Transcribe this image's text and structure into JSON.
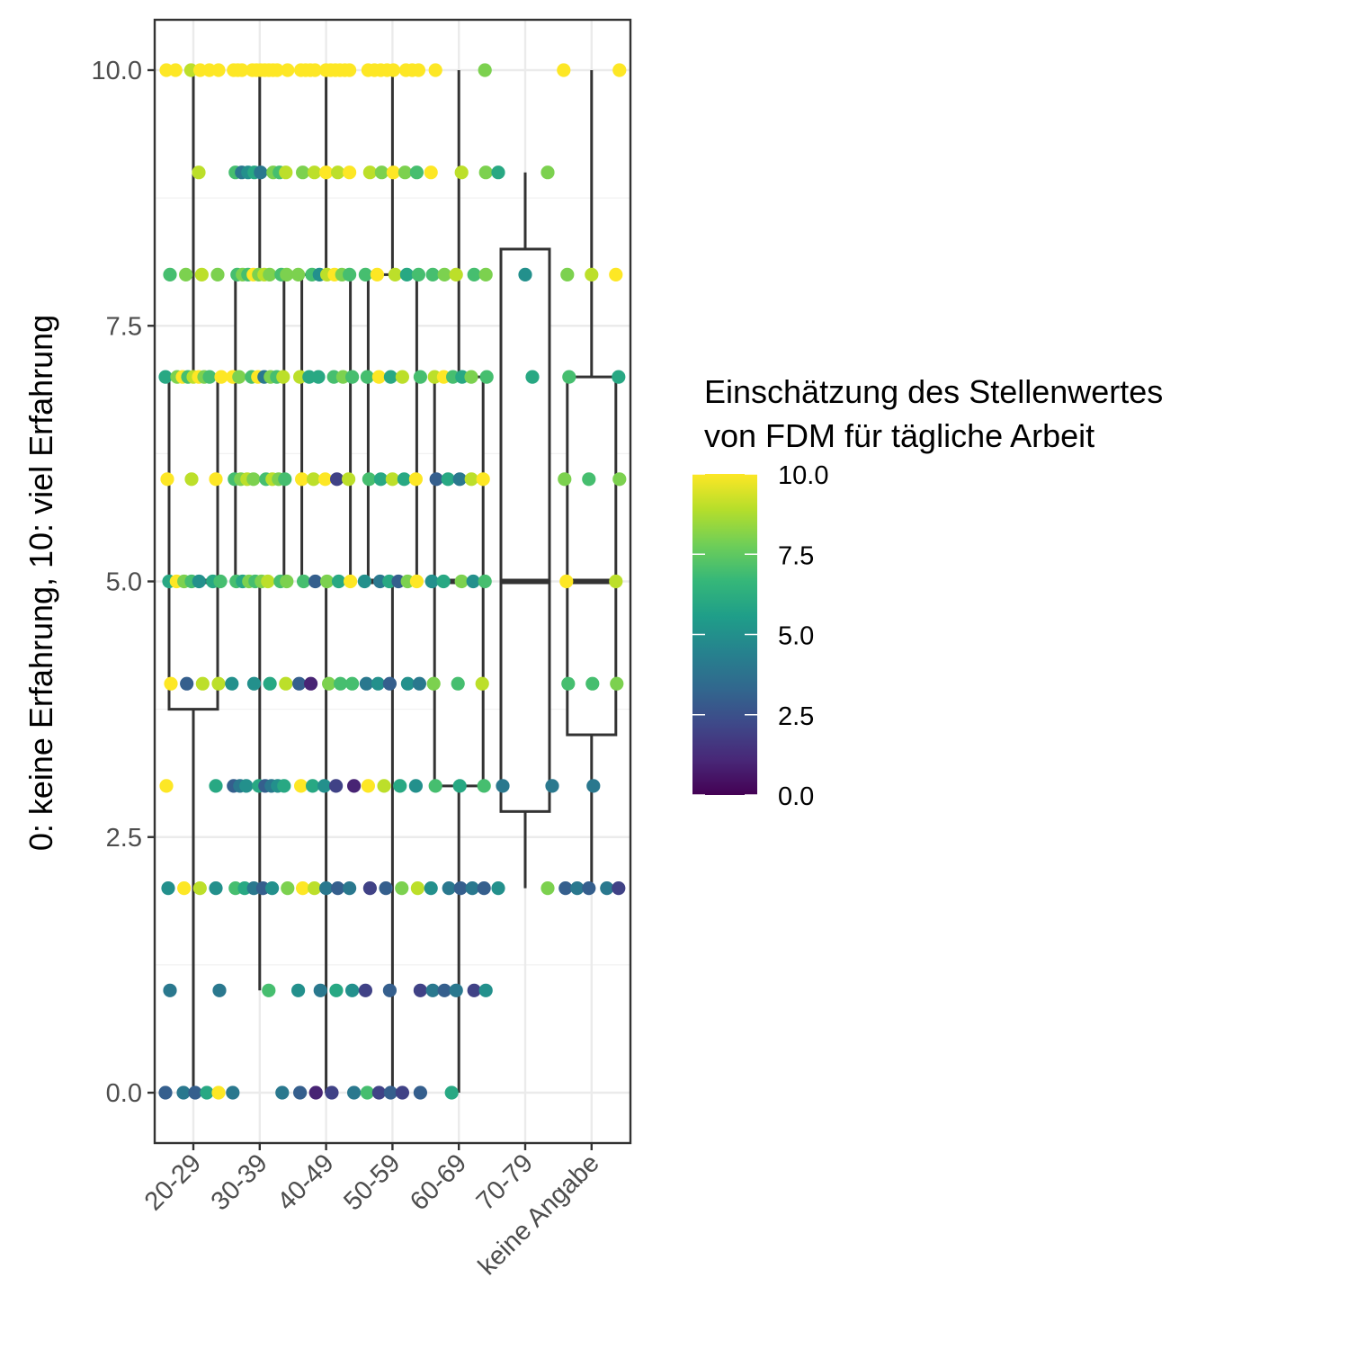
{
  "chart_data": {
    "type": "box",
    "ylabel": "0: keine Erfahrung, 10: viel Erfahrung",
    "xlabel": "",
    "categories": [
      "20-29",
      "30-39",
      "40-49",
      "50-59",
      "60-69",
      "70-79",
      "keine Angabe"
    ],
    "ylim": [
      -0.5,
      10.5
    ],
    "y_ticks": [
      "0.0",
      "2.5",
      "5.0",
      "7.5",
      "10.0"
    ],
    "y_tick_values": [
      0,
      2.5,
      5,
      7.5,
      10
    ],
    "grid": true,
    "boxes": [
      {
        "category": "20-29",
        "whisker_low": 0,
        "q1": 3.75,
        "median": 5,
        "q3": 7,
        "whisker_high": 10
      },
      {
        "category": "30-39",
        "whisker_low": 1,
        "q1": 5,
        "median": 5,
        "q3": 8,
        "whisker_high": 10
      },
      {
        "category": "40-49",
        "whisker_low": 0,
        "q1": 5,
        "median": 5,
        "q3": 8,
        "whisker_high": 10
      },
      {
        "category": "50-59",
        "whisker_low": 0,
        "q1": 5,
        "median": 5,
        "q3": 8,
        "whisker_high": 10
      },
      {
        "category": "60-69",
        "whisker_low": 0,
        "q1": 3,
        "median": 5,
        "q3": 7,
        "whisker_high": 10
      },
      {
        "category": "70-79",
        "whisker_low": 2,
        "q1": 2.75,
        "median": 5,
        "q3": 8.25,
        "whisker_high": 9
      },
      {
        "category": "keine Angabe",
        "whisker_low": 2,
        "q1": 3.5,
        "median": 5,
        "q3": 7,
        "whisker_high": 10
      }
    ],
    "points": [
      {
        "c": 0,
        "y": 10,
        "v": [
          10,
          10,
          9,
          10,
          10,
          10
        ]
      },
      {
        "c": 0,
        "y": 9,
        "v": [
          9
        ]
      },
      {
        "c": 0,
        "y": 8,
        "v": [
          7,
          8,
          9,
          8
        ]
      },
      {
        "c": 0,
        "y": 7,
        "v": [
          6,
          8,
          10,
          7,
          9,
          10,
          8,
          7,
          10
        ]
      },
      {
        "c": 0,
        "y": 6,
        "v": [
          10,
          9,
          10
        ]
      },
      {
        "c": 0,
        "y": 5,
        "v": [
          6,
          10,
          8,
          7,
          5,
          6,
          7
        ]
      },
      {
        "c": 0,
        "y": 4,
        "v": [
          10,
          3,
          9,
          9
        ]
      },
      {
        "c": 0,
        "y": 3,
        "v": [
          10,
          6
        ]
      },
      {
        "c": 0,
        "y": 2,
        "v": [
          5,
          10,
          9,
          5
        ]
      },
      {
        "c": 0,
        "y": 1,
        "v": [
          4,
          4
        ]
      },
      {
        "c": 0,
        "y": 0,
        "v": [
          3,
          4,
          3,
          6,
          10
        ]
      },
      {
        "c": 1,
        "y": 10,
        "v": [
          10,
          10,
          10,
          10,
          10,
          10,
          10,
          10,
          10,
          10,
          10
        ]
      },
      {
        "c": 1,
        "y": 9,
        "v": [
          7,
          4,
          5,
          6,
          4,
          8,
          7,
          9
        ]
      },
      {
        "c": 1,
        "y": 8,
        "v": [
          7,
          8,
          7,
          10,
          8,
          9,
          8,
          7,
          8
        ]
      },
      {
        "c": 1,
        "y": 7,
        "v": [
          10,
          8,
          7,
          10,
          4,
          8,
          7,
          9
        ]
      },
      {
        "c": 1,
        "y": 6,
        "v": [
          7,
          8,
          9,
          8,
          7,
          9,
          8,
          7
        ]
      },
      {
        "c": 1,
        "y": 5,
        "v": [
          7,
          6,
          8,
          7,
          8,
          9,
          7,
          8
        ]
      },
      {
        "c": 1,
        "y": 4,
        "v": [
          5,
          5,
          6,
          9
        ]
      },
      {
        "c": 1,
        "y": 3,
        "v": [
          3,
          4,
          5,
          6,
          3,
          4,
          5,
          6
        ]
      },
      {
        "c": 1,
        "y": 2,
        "v": [
          7,
          6,
          4,
          3,
          5,
          8
        ]
      },
      {
        "c": 1,
        "y": 1,
        "v": [
          7
        ]
      },
      {
        "c": 1,
        "y": 0,
        "v": [
          4,
          4
        ]
      },
      {
        "c": 2,
        "y": 10,
        "v": [
          10,
          10,
          10,
          10,
          10,
          10,
          10,
          10,
          10,
          10
        ]
      },
      {
        "c": 2,
        "y": 9,
        "v": [
          8,
          9,
          10,
          9,
          10
        ]
      },
      {
        "c": 2,
        "y": 8,
        "v": [
          8,
          7,
          5,
          9,
          10,
          8,
          7
        ]
      },
      {
        "c": 2,
        "y": 7,
        "v": [
          9,
          6,
          6,
          7,
          8,
          7
        ]
      },
      {
        "c": 2,
        "y": 6,
        "v": [
          10,
          9,
          10,
          2,
          9
        ]
      },
      {
        "c": 2,
        "y": 5,
        "v": [
          7,
          3,
          8,
          6,
          10
        ]
      },
      {
        "c": 2,
        "y": 4,
        "v": [
          3,
          1,
          8,
          7,
          7
        ]
      },
      {
        "c": 2,
        "y": 3,
        "v": [
          10,
          6,
          5,
          2,
          1
        ]
      },
      {
        "c": 2,
        "y": 2,
        "v": [
          10,
          9,
          4,
          3,
          4
        ]
      },
      {
        "c": 2,
        "y": 1,
        "v": [
          5,
          4,
          6,
          5
        ]
      },
      {
        "c": 2,
        "y": 0,
        "v": [
          3,
          1,
          2,
          4
        ]
      },
      {
        "c": 3,
        "y": 10,
        "v": [
          10,
          10,
          10,
          10,
          10,
          10,
          10,
          10
        ]
      },
      {
        "c": 3,
        "y": 9,
        "v": [
          9,
          8,
          10,
          8,
          7
        ]
      },
      {
        "c": 3,
        "y": 8,
        "v": [
          7,
          10,
          9,
          6,
          7
        ]
      },
      {
        "c": 3,
        "y": 7,
        "v": [
          7,
          10,
          6,
          9,
          7
        ]
      },
      {
        "c": 3,
        "y": 6,
        "v": [
          7,
          6,
          9,
          6,
          10
        ]
      },
      {
        "c": 3,
        "y": 5,
        "v": [
          5,
          4,
          6,
          3,
          8,
          10
        ]
      },
      {
        "c": 3,
        "y": 4,
        "v": [
          4,
          5,
          3,
          5,
          4
        ]
      },
      {
        "c": 3,
        "y": 3,
        "v": [
          10,
          9,
          6,
          5
        ]
      },
      {
        "c": 3,
        "y": 2,
        "v": [
          2,
          3,
          8,
          9
        ]
      },
      {
        "c": 3,
        "y": 1,
        "v": [
          2,
          3,
          2
        ]
      },
      {
        "c": 3,
        "y": 0,
        "v": [
          7,
          2,
          3,
          2,
          3
        ]
      },
      {
        "c": 4,
        "y": 10,
        "v": [
          10,
          8
        ]
      },
      {
        "c": 4,
        "y": 9,
        "v": [
          10,
          9,
          8
        ]
      },
      {
        "c": 4,
        "y": 8,
        "v": [
          7,
          8,
          9,
          7,
          8
        ]
      },
      {
        "c": 4,
        "y": 7,
        "v": [
          9,
          10,
          7,
          6,
          8,
          7
        ]
      },
      {
        "c": 4,
        "y": 6,
        "v": [
          3,
          6,
          4,
          9,
          10
        ]
      },
      {
        "c": 4,
        "y": 5,
        "v": [
          5,
          6,
          8,
          5,
          7
        ]
      },
      {
        "c": 4,
        "y": 4,
        "v": [
          8,
          7,
          9
        ]
      },
      {
        "c": 4,
        "y": 3,
        "v": [
          7,
          6,
          7
        ]
      },
      {
        "c": 4,
        "y": 2,
        "v": [
          5,
          4,
          3,
          4,
          3
        ]
      },
      {
        "c": 4,
        "y": 1,
        "v": [
          4,
          3,
          4,
          2,
          5
        ]
      },
      {
        "c": 4,
        "y": 0,
        "v": [
          6
        ]
      },
      {
        "c": 5,
        "y": 9,
        "v": [
          6,
          8
        ]
      },
      {
        "c": 5,
        "y": 8,
        "v": [
          5
        ]
      },
      {
        "c": 5,
        "y": 7,
        "v": [
          6
        ]
      },
      {
        "c": 5,
        "y": 3,
        "v": [
          4,
          4
        ]
      },
      {
        "c": 5,
        "y": 2,
        "v": [
          5,
          8
        ]
      },
      {
        "c": 6,
        "y": 10,
        "v": [
          10,
          10
        ]
      },
      {
        "c": 6,
        "y": 8,
        "v": [
          8,
          9,
          10
        ]
      },
      {
        "c": 6,
        "y": 7,
        "v": [
          7,
          6
        ]
      },
      {
        "c": 6,
        "y": 6,
        "v": [
          8,
          7,
          8
        ]
      },
      {
        "c": 6,
        "y": 5,
        "v": [
          10,
          9
        ]
      },
      {
        "c": 6,
        "y": 4,
        "v": [
          7,
          7,
          8
        ]
      },
      {
        "c": 6,
        "y": 3,
        "v": [
          4
        ]
      },
      {
        "c": 6,
        "y": 2,
        "v": [
          3,
          4,
          3,
          4,
          2
        ]
      }
    ],
    "color_scale": {
      "title": [
        "Einschätzung des Stellenwertes",
        "von FDM für tägliche Arbeit"
      ],
      "ticks": [
        "0.0",
        "2.5",
        "5.0",
        "7.5",
        "10.0"
      ],
      "tick_values": [
        0,
        2.5,
        5,
        7.5,
        10
      ],
      "range": [
        0,
        10
      ],
      "palette": "viridis",
      "colors": [
        "#440154",
        "#482878",
        "#3e4989",
        "#31688e",
        "#26828e",
        "#1f9e89",
        "#35b779",
        "#6ece58",
        "#b5de2b",
        "#fde725"
      ]
    }
  }
}
